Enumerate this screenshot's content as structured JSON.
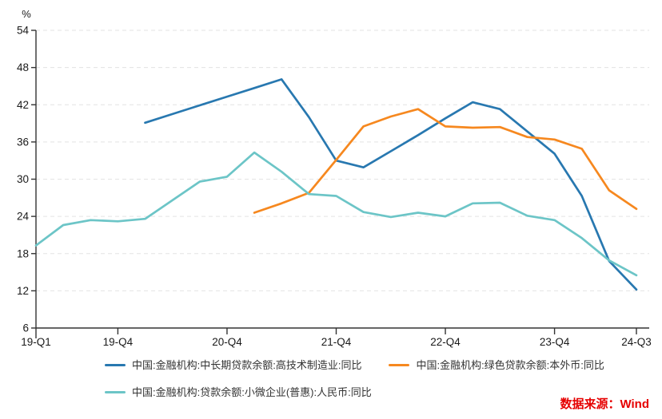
{
  "chart_data": {
    "type": "line",
    "title": "",
    "unit_label": "%",
    "xlabel": "",
    "ylabel": "%",
    "ylim": [
      6,
      54
    ],
    "y_ticks": [
      6,
      12,
      18,
      24,
      30,
      36,
      42,
      48,
      54
    ],
    "grid": "horizontal-dashed",
    "legend_position": "bottom",
    "categories": [
      "19-Q1",
      "19-Q2",
      "19-Q3",
      "19-Q4",
      "20-Q1",
      "20-Q2",
      "20-Q3",
      "20-Q4",
      "21-Q1",
      "21-Q2",
      "21-Q3",
      "21-Q4",
      "22-Q1",
      "22-Q2",
      "22-Q3",
      "22-Q4",
      "23-Q1",
      "23-Q2",
      "23-Q3",
      "23-Q4",
      "24-Q1",
      "24-Q2",
      "24-Q3"
    ],
    "x_ticks": [
      {
        "index": 0,
        "label": "19-Q1"
      },
      {
        "index": 3,
        "label": "19-Q4"
      },
      {
        "index": 7,
        "label": "20-Q4"
      },
      {
        "index": 11,
        "label": "21-Q4"
      },
      {
        "index": 15,
        "label": "22-Q4"
      },
      {
        "index": 19,
        "label": "23-Q4"
      },
      {
        "index": 22,
        "label": "24-Q3"
      }
    ],
    "series": [
      {
        "name": "中国:金融机构:中长期贷款余额:高技术制造业:同比",
        "color": "#2878b0",
        "values": [
          null,
          null,
          null,
          null,
          39.1,
          40.5,
          41.9,
          43.3,
          44.7,
          46.1,
          40.0,
          33.0,
          31.9,
          34.5,
          37.1,
          39.8,
          42.4,
          41.3,
          37.7,
          34.1,
          27.3,
          16.8,
          12.2
        ]
      },
      {
        "name": "中国:金融机构:绿色贷款余额:本外币:同比",
        "color": "#f6881f",
        "values": [
          null,
          null,
          null,
          null,
          null,
          null,
          null,
          null,
          24.6,
          26.1,
          27.8,
          33.1,
          38.5,
          40.1,
          41.3,
          38.5,
          38.3,
          38.4,
          36.8,
          36.4,
          34.9,
          28.2,
          25.2
        ]
      },
      {
        "name": "中国:金融机构:贷款余额:小微企业(普惠):人民币:同比",
        "color": "#6cc5c7",
        "values": [
          19.3,
          22.6,
          23.4,
          23.2,
          23.6,
          26.6,
          29.6,
          30.4,
          34.3,
          31.2,
          27.6,
          27.3,
          24.7,
          23.9,
          24.6,
          24.0,
          26.1,
          26.2,
          24.1,
          23.4,
          20.5,
          16.9,
          14.5
        ]
      }
    ],
    "colors": {
      "axis": "#333333",
      "grid": "#e3e3e3",
      "tick_text": "#1a1a1a",
      "source_text": "#e60000"
    }
  },
  "source": {
    "label": "数据来源：Wind"
  }
}
